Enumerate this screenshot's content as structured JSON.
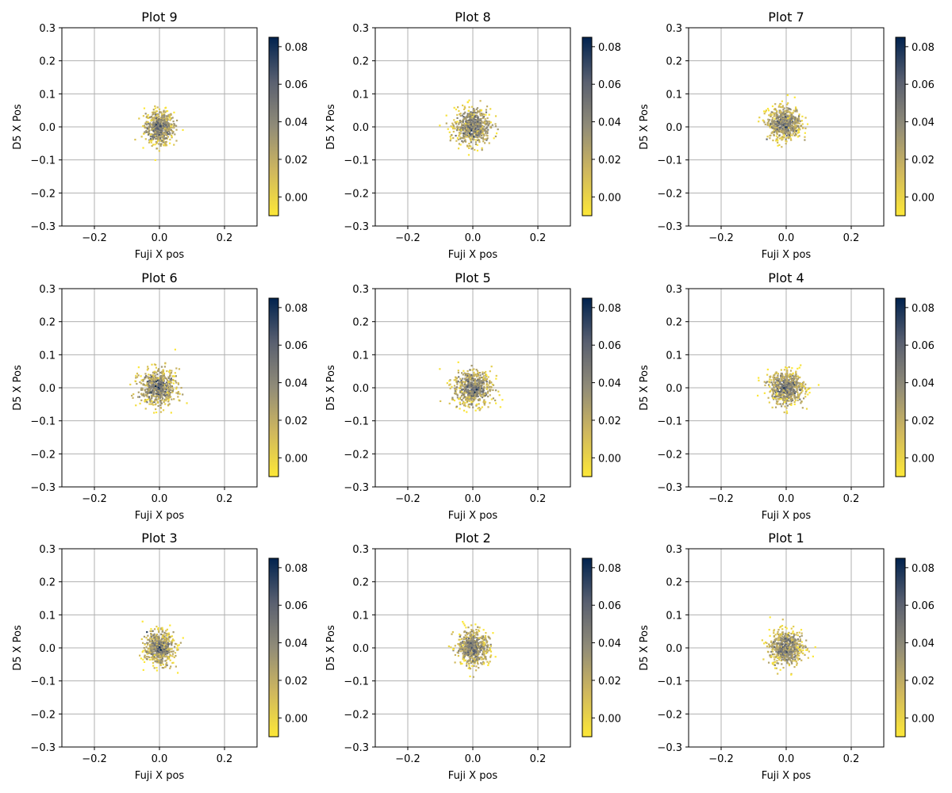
{
  "chart_data": [
    {
      "type": "scatter",
      "title": "Plot 9",
      "xlabel": "Fuji X pos",
      "ylabel": "D5 X Pos",
      "xlim": [
        -0.3,
        0.3
      ],
      "ylim": [
        -0.3,
        0.3
      ],
      "xticks": [
        -0.2,
        0.0,
        0.2
      ],
      "yticks": [
        -0.3,
        -0.2,
        -0.1,
        0.0,
        0.1,
        0.2,
        0.3
      ],
      "colorbar": {
        "min": -0.01,
        "max": 0.085,
        "ticks": [
          0.0,
          0.02,
          0.04,
          0.06,
          0.08
        ],
        "colormap": "cividis_r"
      },
      "grid": true,
      "points": {
        "count": 600,
        "center": [
          0.0,
          0.0
        ],
        "spread_x": 0.022,
        "spread_y": 0.025
      }
    },
    {
      "type": "scatter",
      "title": "Plot 8",
      "xlabel": "Fuji X pos",
      "ylabel": "D5 X Pos",
      "xlim": [
        -0.3,
        0.3
      ],
      "ylim": [
        -0.3,
        0.3
      ],
      "xticks": [
        -0.2,
        0.0,
        0.2
      ],
      "yticks": [
        -0.3,
        -0.2,
        -0.1,
        0.0,
        0.1,
        0.2,
        0.3
      ],
      "colorbar": {
        "min": -0.01,
        "max": 0.085,
        "ticks": [
          0.0,
          0.02,
          0.04,
          0.06,
          0.08
        ],
        "colormap": "cividis_r"
      },
      "grid": true,
      "points": {
        "count": 600,
        "center": [
          0.0,
          0.0
        ],
        "spread_x": 0.027,
        "spread_y": 0.027
      }
    },
    {
      "type": "scatter",
      "title": "Plot 7",
      "xlabel": "Fuji X pos",
      "ylabel": "D5 X Pos",
      "xlim": [
        -0.3,
        0.3
      ],
      "ylim": [
        -0.3,
        0.3
      ],
      "xticks": [
        -0.2,
        0.0,
        0.2
      ],
      "yticks": [
        -0.3,
        -0.2,
        -0.1,
        0.0,
        0.1,
        0.2,
        0.3
      ],
      "colorbar": {
        "min": -0.01,
        "max": 0.085,
        "ticks": [
          0.0,
          0.02,
          0.04,
          0.06,
          0.08
        ],
        "colormap": "cividis_r"
      },
      "grid": true,
      "points": {
        "count": 600,
        "center": [
          -0.005,
          0.01
        ],
        "spread_x": 0.026,
        "spread_y": 0.024
      }
    },
    {
      "type": "scatter",
      "title": "Plot 6",
      "xlabel": "Fuji X pos",
      "ylabel": "D5 X Pos",
      "xlim": [
        -0.3,
        0.3
      ],
      "ylim": [
        -0.3,
        0.3
      ],
      "xticks": [
        -0.2,
        0.0,
        0.2
      ],
      "yticks": [
        -0.3,
        -0.2,
        -0.1,
        0.0,
        0.1,
        0.2,
        0.3
      ],
      "colorbar": {
        "min": -0.01,
        "max": 0.085,
        "ticks": [
          0.0,
          0.02,
          0.04,
          0.06,
          0.08
        ],
        "colormap": "cividis_r"
      },
      "grid": true,
      "points": {
        "count": 600,
        "center": [
          -0.005,
          0.0
        ],
        "spread_x": 0.028,
        "spread_y": 0.027
      }
    },
    {
      "type": "scatter",
      "title": "Plot 5",
      "xlabel": "Fuji X pos",
      "ylabel": "D5 X Pos",
      "xlim": [
        -0.3,
        0.3
      ],
      "ylim": [
        -0.3,
        0.3
      ],
      "xticks": [
        -0.2,
        0.0,
        0.2
      ],
      "yticks": [
        -0.3,
        -0.2,
        -0.1,
        0.0,
        0.1,
        0.2,
        0.3
      ],
      "colorbar": {
        "min": -0.01,
        "max": 0.085,
        "ticks": [
          0.0,
          0.02,
          0.04,
          0.06,
          0.08
        ],
        "colormap": "cividis_r"
      },
      "grid": true,
      "points": {
        "count": 600,
        "center": [
          0.0,
          0.0
        ],
        "spread_x": 0.03,
        "spread_y": 0.027
      }
    },
    {
      "type": "scatter",
      "title": "Plot 4",
      "xlabel": "Fuji X pos",
      "ylabel": "D5 X Pos",
      "xlim": [
        -0.3,
        0.3
      ],
      "ylim": [
        -0.3,
        0.3
      ],
      "xticks": [
        -0.2,
        0.0,
        0.2
      ],
      "yticks": [
        -0.3,
        -0.2,
        -0.1,
        0.0,
        0.1,
        0.2,
        0.3
      ],
      "colorbar": {
        "min": -0.01,
        "max": 0.085,
        "ticks": [
          0.0,
          0.02,
          0.04,
          0.06,
          0.08
        ],
        "colormap": "cividis_r"
      },
      "grid": true,
      "points": {
        "count": 600,
        "center": [
          0.0,
          0.0
        ],
        "spread_x": 0.028,
        "spread_y": 0.025
      }
    },
    {
      "type": "scatter",
      "title": "Plot 3",
      "xlabel": "Fuji X pos",
      "ylabel": "D5 X Pos",
      "xlim": [
        -0.3,
        0.3
      ],
      "ylim": [
        -0.3,
        0.3
      ],
      "xticks": [
        -0.2,
        0.0,
        0.2
      ],
      "yticks": [
        -0.3,
        -0.2,
        -0.1,
        0.0,
        0.1,
        0.2,
        0.3
      ],
      "colorbar": {
        "min": -0.01,
        "max": 0.085,
        "ticks": [
          0.0,
          0.02,
          0.04,
          0.06,
          0.08
        ],
        "colormap": "cividis_r"
      },
      "grid": true,
      "points": {
        "count": 600,
        "center": [
          0.0,
          0.0
        ],
        "spread_x": 0.022,
        "spread_y": 0.025
      }
    },
    {
      "type": "scatter",
      "title": "Plot 2",
      "xlabel": "Fuji X pos",
      "ylabel": "D5 X Pos",
      "xlim": [
        -0.3,
        0.3
      ],
      "ylim": [
        -0.3,
        0.3
      ],
      "xticks": [
        -0.2,
        0.0,
        0.2
      ],
      "yticks": [
        -0.3,
        -0.2,
        -0.1,
        0.0,
        0.1,
        0.2,
        0.3
      ],
      "colorbar": {
        "min": -0.01,
        "max": 0.085,
        "ticks": [
          0.0,
          0.02,
          0.04,
          0.06,
          0.08
        ],
        "colormap": "cividis_r"
      },
      "grid": true,
      "points": {
        "count": 600,
        "center": [
          0.0,
          0.0
        ],
        "spread_x": 0.025,
        "spread_y": 0.026
      }
    },
    {
      "type": "scatter",
      "title": "Plot 1",
      "xlabel": "Fuji X pos",
      "ylabel": "D5 X Pos",
      "xlim": [
        -0.3,
        0.3
      ],
      "ylim": [
        -0.3,
        0.3
      ],
      "xticks": [
        -0.2,
        0.0,
        0.2
      ],
      "yticks": [
        -0.3,
        -0.2,
        -0.1,
        0.0,
        0.1,
        0.2,
        0.3
      ],
      "colorbar": {
        "min": -0.01,
        "max": 0.085,
        "ticks": [
          0.0,
          0.02,
          0.04,
          0.06,
          0.08
        ],
        "colormap": "cividis_r"
      },
      "grid": true,
      "points": {
        "count": 600,
        "center": [
          0.0,
          0.0
        ],
        "spread_x": 0.025,
        "spread_y": 0.026
      }
    }
  ]
}
